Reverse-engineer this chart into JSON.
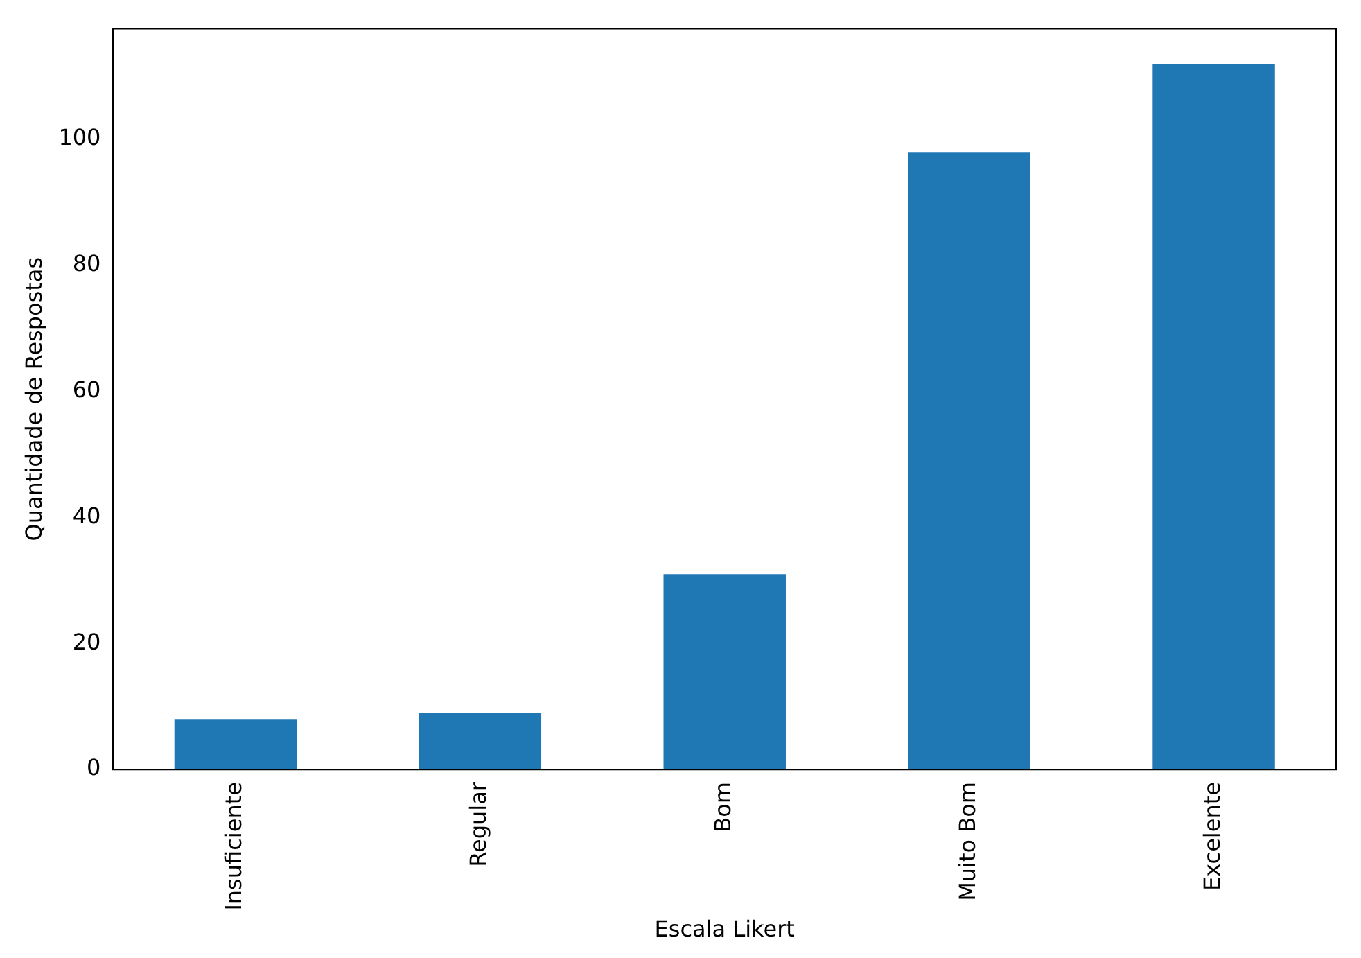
{
  "chart_data": {
    "type": "bar",
    "xlabel": "Escala Likert",
    "ylabel": "Quantidade de Respostas",
    "categories": [
      "Insuficiente",
      "Regular",
      "Bom",
      "Muito Bom",
      "Excelente"
    ],
    "values": [
      8,
      9,
      31,
      98,
      112
    ],
    "color": "#1f77b4",
    "ylim": [
      0,
      117.6
    ],
    "yticks": [
      0,
      20,
      40,
      60,
      80,
      100
    ],
    "grid": false,
    "legend": false
  }
}
